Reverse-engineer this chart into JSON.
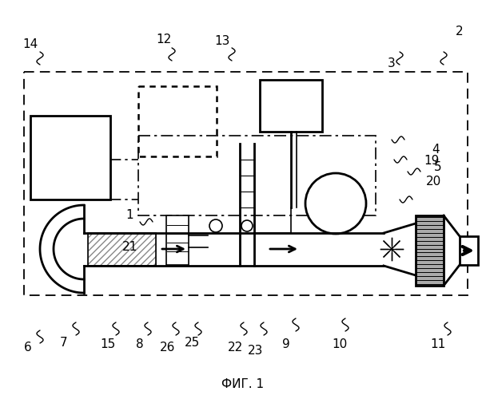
{
  "fig_width": 6.08,
  "fig_height": 5.0,
  "dpi": 100,
  "bg_color": "#ffffff",
  "title": "ФИГ. 1",
  "title_fontsize": 11,
  "label_fontsize": 11
}
